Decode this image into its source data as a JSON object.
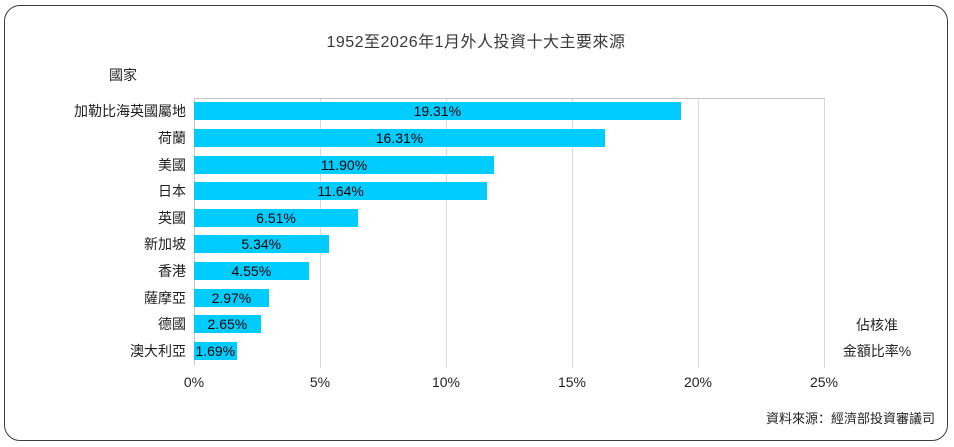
{
  "title": "1952至2026年1月外人投資十大主要來源",
  "source": "資料來源：經濟部投資審議司",
  "chart_data": {
    "type": "bar",
    "orientation": "horizontal",
    "title": "1952至2026年1月外人投資十大主要來源",
    "category_axis_title": "國家",
    "value_axis_title_lines": [
      "佔核准",
      "金額比率%"
    ],
    "categories": [
      "加勒比海英國屬地",
      "荷蘭",
      "美國",
      "日本",
      "英國",
      "新加坡",
      "香港",
      "薩摩亞",
      "德國",
      "澳大利亞"
    ],
    "values": [
      19.31,
      16.31,
      11.9,
      11.64,
      6.51,
      5.34,
      4.55,
      2.97,
      2.65,
      1.69
    ],
    "value_labels": [
      "19.31%",
      "16.31%",
      "11.90%",
      "11.64%",
      "6.51%",
      "5.34%",
      "4.55%",
      "2.97%",
      "2.65%",
      "1.69%"
    ],
    "x_ticks": [
      "0%",
      "5%",
      "10%",
      "15%",
      "20%",
      "25%"
    ],
    "x_tick_values": [
      0,
      5,
      10,
      15,
      20,
      25
    ],
    "xlim": [
      0,
      25
    ],
    "bar_color": "#00CCFF",
    "gridline_color": "#D9D9D9",
    "grid": true,
    "legend": "none",
    "value_label_position": "center"
  }
}
